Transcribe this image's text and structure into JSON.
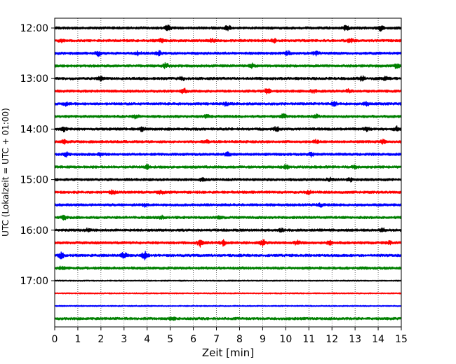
{
  "chart_data": {
    "type": "line",
    "title": "",
    "xlabel": "Zeit  [min]",
    "ylabel": "UTC (Lokalzeit = UTC + 01:00)",
    "xlim": [
      0,
      15
    ],
    "x_ticks": [
      "0",
      "1",
      "2",
      "3",
      "4",
      "5",
      "6",
      "7",
      "8",
      "9",
      "10",
      "11",
      "12",
      "13",
      "14",
      "15"
    ],
    "y_ticks": [
      "12:00",
      "13:00",
      "14:00",
      "15:00",
      "16:00",
      "17:00"
    ],
    "grid": "vertical dotted",
    "trace_interval_minutes": 15,
    "colors": [
      "#000000",
      "#ff0000",
      "#0000ff",
      "#008000"
    ],
    "series": [
      {
        "start": "12:00",
        "color": "#000000",
        "bursts": [
          [
            4.9,
            3
          ],
          [
            7.5,
            3
          ],
          [
            12.6,
            2.5
          ],
          [
            14.1,
            3
          ]
        ]
      },
      {
        "start": "12:15",
        "color": "#ff0000",
        "bursts": [
          [
            0.3,
            2
          ],
          [
            4.6,
            2
          ],
          [
            6.8,
            2
          ],
          [
            9.5,
            2
          ],
          [
            12.8,
            2
          ]
        ]
      },
      {
        "start": "12:30",
        "color": "#0000ff",
        "bursts": [
          [
            1.9,
            3
          ],
          [
            3.6,
            2
          ],
          [
            4.5,
            2.5
          ],
          [
            10.1,
            2.5
          ],
          [
            11.3,
            2.5
          ]
        ]
      },
      {
        "start": "12:45",
        "color": "#008000",
        "bursts": [
          [
            4.8,
            3
          ],
          [
            8.5,
            3
          ],
          [
            14.8,
            2.5
          ]
        ]
      },
      {
        "start": "13:00",
        "color": "#000000",
        "bursts": [
          [
            2.0,
            2
          ],
          [
            5.5,
            2
          ],
          [
            13.3,
            2.5
          ],
          [
            14.3,
            2.5
          ]
        ]
      },
      {
        "start": "13:15",
        "color": "#ff0000",
        "bursts": [
          [
            5.6,
            3
          ],
          [
            9.2,
            3
          ],
          [
            11.2,
            2
          ],
          [
            12.7,
            2
          ]
        ]
      },
      {
        "start": "13:30",
        "color": "#0000ff",
        "bursts": [
          [
            0.5,
            2
          ],
          [
            7.4,
            2
          ],
          [
            12.1,
            2
          ],
          [
            13.5,
            2
          ]
        ]
      },
      {
        "start": "13:45",
        "color": "#008000",
        "bursts": [
          [
            3.5,
            2
          ],
          [
            6.6,
            2
          ],
          [
            9.9,
            2.5
          ],
          [
            11.3,
            2
          ]
        ]
      },
      {
        "start": "14:00",
        "color": "#000000",
        "bursts": [
          [
            0.4,
            2.5
          ],
          [
            3.8,
            2.5
          ],
          [
            9.6,
            3
          ],
          [
            13.5,
            2.5
          ],
          [
            14.8,
            3
          ]
        ]
      },
      {
        "start": "14:15",
        "color": "#ff0000",
        "bursts": [
          [
            0.4,
            2
          ],
          [
            6.6,
            2
          ],
          [
            11.3,
            2
          ],
          [
            14.2,
            2
          ]
        ]
      },
      {
        "start": "14:30",
        "color": "#0000ff",
        "bursts": [
          [
            0.5,
            2.5
          ],
          [
            2.0,
            2
          ],
          [
            7.5,
            2.5
          ],
          [
            11.1,
            2.5
          ]
        ]
      },
      {
        "start": "14:45",
        "color": "#008000",
        "bursts": [
          [
            4.0,
            2
          ],
          [
            10.0,
            2.5
          ],
          [
            13.0,
            2
          ]
        ]
      },
      {
        "start": "15:00",
        "color": "#000000",
        "bursts": [
          [
            6.4,
            2
          ],
          [
            11.9,
            2
          ],
          [
            12.8,
            2
          ]
        ]
      },
      {
        "start": "15:15",
        "color": "#ff0000",
        "bursts": [
          [
            2.5,
            2
          ],
          [
            4.6,
            2
          ],
          [
            11.0,
            2
          ]
        ]
      },
      {
        "start": "15:30",
        "color": "#0000ff",
        "bursts": [
          [
            3.9,
            2
          ],
          [
            11.5,
            2
          ]
        ]
      },
      {
        "start": "15:45",
        "color": "#008000",
        "bursts": [
          [
            0.4,
            2
          ],
          [
            4.6,
            2
          ],
          [
            7.2,
            2
          ]
        ]
      },
      {
        "start": "16:00",
        "color": "#000000",
        "bursts": [
          [
            1.4,
            2
          ],
          [
            9.8,
            2
          ],
          [
            14.2,
            2
          ]
        ]
      },
      {
        "start": "16:15",
        "color": "#ff0000",
        "bursts": [
          [
            6.3,
            4.5
          ],
          [
            7.3,
            3.5
          ],
          [
            9.0,
            3.5
          ],
          [
            10.5,
            2.5
          ],
          [
            11.9,
            2.5
          ],
          [
            14.5,
            2
          ]
        ]
      },
      {
        "start": "16:30",
        "color": "#0000ff",
        "bursts": [
          [
            0.3,
            4
          ],
          [
            3.0,
            3.5
          ],
          [
            3.9,
            5
          ]
        ]
      },
      {
        "start": "16:45",
        "color": "#008000",
        "bursts": [
          [
            0.3,
            1.5
          ]
        ]
      },
      {
        "start": "17:00",
        "color": "#000000",
        "bursts": []
      },
      {
        "start": "17:15",
        "color": "#ff0000",
        "bursts": []
      },
      {
        "start": "17:30",
        "color": "#0000ff",
        "bursts": []
      },
      {
        "start": "17:45",
        "color": "#008000",
        "bursts": [
          [
            5.1,
            1.5
          ]
        ]
      }
    ]
  }
}
